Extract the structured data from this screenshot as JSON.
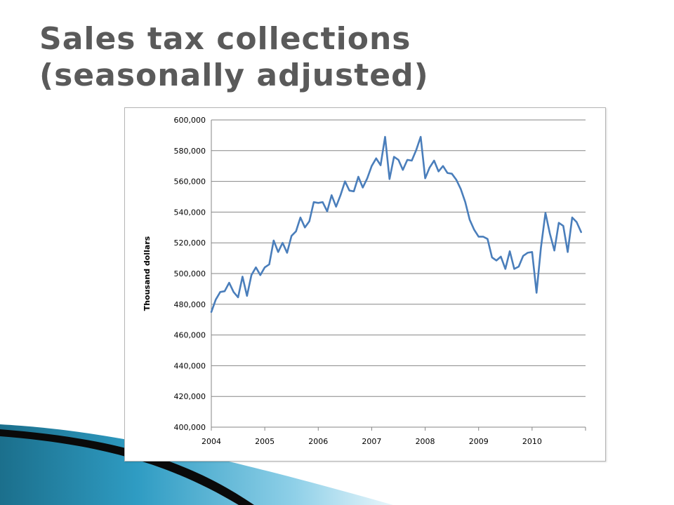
{
  "slide": {
    "title_line1": "Sales tax collections",
    "title_line2": "(seasonally adjusted)"
  },
  "chart_data": {
    "type": "line",
    "title": "",
    "xlabel": "",
    "ylabel": "Thousand dollars",
    "grid": true,
    "legend": "none",
    "xlim": [
      2004,
      2011
    ],
    "ylim": [
      400000,
      600000
    ],
    "y_ticks": [
      "400,000",
      "420,000",
      "440,000",
      "460,000",
      "480,000",
      "500,000",
      "520,000",
      "540,000",
      "560,000",
      "580,000",
      "600,000"
    ],
    "x_ticks": [
      "2004",
      "2005",
      "2006",
      "2007",
      "2008",
      "2009",
      "2010"
    ],
    "line_color": "#4a7ebb",
    "series": [
      {
        "x_start": "2004-01",
        "frequency": "monthly",
        "values": [
          475000,
          483000,
          488000,
          488500,
          494000,
          488000,
          484500,
          498000,
          485500,
          499000,
          504000,
          499000,
          504000,
          506000,
          521500,
          514000,
          520000,
          513500,
          524500,
          527500,
          536500,
          530000,
          534000,
          546500,
          546000,
          546500,
          540500,
          551000,
          543500,
          551000,
          560000,
          554000,
          553500,
          563000,
          556000,
          562000,
          570000,
          575000,
          570500,
          589000,
          561500,
          576000,
          574000,
          567500,
          574000,
          573500,
          580500,
          589000,
          562000,
          569000,
          573500,
          566500,
          570000,
          565500,
          565000,
          561000,
          555000,
          546500,
          535000,
          528500,
          524000,
          524000,
          522500,
          510500,
          508500,
          511000,
          503000,
          514500,
          503000,
          504500,
          511500,
          513500,
          514000,
          487500,
          517000,
          539500,
          526000,
          515000,
          533000,
          531000,
          514000,
          536500,
          533500,
          527000
        ]
      }
    ]
  }
}
